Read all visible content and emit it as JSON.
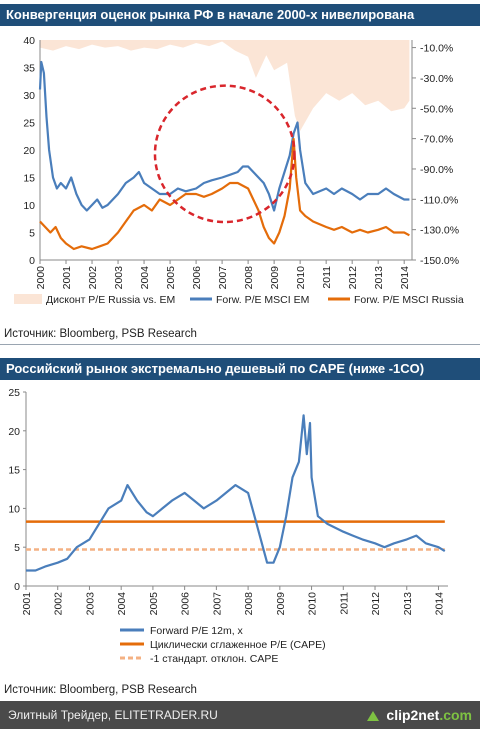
{
  "banner1": "Конвергенция оценок рынка РФ в начале 2000-х нивелирована",
  "banner2": "Российский рынок экстремально дешевый по CAPE (ниже -1CO)",
  "source1": "Источник: Bloomberg, PSB Research",
  "source2": "Источник: Bloomberg, PSB Research",
  "footer": {
    "text": "Элитный Трейдер, ELITETRADER.RU",
    "logo_main": "clip2net",
    "logo_suffix": ".com"
  },
  "colors": {
    "em": "#4a7ebb",
    "russia": "#e46c0a",
    "discount": "#fbe5d6",
    "circle": "#d9262c",
    "sd": "#f4b183",
    "banner": "#1f4e79"
  },
  "chart_data": [
    {
      "type": "line",
      "title": "",
      "x_ticks": [
        "2000",
        "2001",
        "2002",
        "2003",
        "2004",
        "2005",
        "2006",
        "2007",
        "2008",
        "2009",
        "2010",
        "2011",
        "2012",
        "2013",
        "2014"
      ],
      "xlim": [
        2000,
        2014.3
      ],
      "ylim": [
        0,
        40
      ],
      "y_ticks": [
        "0",
        "5",
        "10",
        "15",
        "20",
        "25",
        "30",
        "35",
        "40"
      ],
      "y2lim": [
        -150,
        -5
      ],
      "y2_ticks": [
        "-10.0%",
        "-30.0%",
        "-50.0%",
        "-70.0%",
        "-90.0%",
        "-110.0%",
        "-130.0%",
        "-150.0%"
      ],
      "legend": [
        "Дисконт P/E Russia vs. EM",
        "Forw. P/E MSCI EM",
        "Forw. P/E MSCI Russia"
      ],
      "legend_position": "bottom",
      "series": [
        {
          "name": "Дисконт P/E Russia vs. EM",
          "axis": "right",
          "type": "area",
          "x": [
            2000,
            2000.5,
            2001,
            2001.5,
            2002,
            2002.5,
            2003,
            2003.5,
            2004,
            2004.5,
            2005,
            2005.5,
            2006,
            2006.5,
            2007,
            2007.5,
            2008,
            2008.3,
            2008.7,
            2009,
            2009.5,
            2009.8,
            2010,
            2010.5,
            2011,
            2011.5,
            2012,
            2012.5,
            2013,
            2013.5,
            2014,
            2014.2
          ],
          "values": [
            -10,
            -12,
            -9,
            -11,
            -8,
            -10,
            -9,
            -12,
            -10,
            -11,
            -8,
            -10,
            -7,
            -9,
            -6,
            -12,
            -16,
            -30,
            -15,
            -25,
            -20,
            -55,
            -65,
            -50,
            -40,
            -45,
            -40,
            -48,
            -45,
            -52,
            -50,
            -45
          ]
        },
        {
          "name": "Forw. P/E MSCI EM",
          "axis": "left",
          "x": [
            2000,
            2000.05,
            2000.15,
            2000.25,
            2000.35,
            2000.5,
            2000.65,
            2000.8,
            2001,
            2001.2,
            2001.4,
            2001.6,
            2001.8,
            2002,
            2002.2,
            2002.4,
            2002.6,
            2002.8,
            2003,
            2003.3,
            2003.6,
            2003.8,
            2004,
            2004.3,
            2004.6,
            2005,
            2005.3,
            2005.6,
            2006,
            2006.3,
            2006.6,
            2007,
            2007.3,
            2007.6,
            2007.8,
            2008,
            2008.2,
            2008.4,
            2008.6,
            2008.8,
            2009,
            2009.2,
            2009.4,
            2009.6,
            2009.75,
            2009.9,
            2010,
            2010.2,
            2010.5,
            2011,
            2011.3,
            2011.6,
            2012,
            2012.3,
            2012.6,
            2013,
            2013.3,
            2013.6,
            2014,
            2014.2
          ],
          "values": [
            31,
            36,
            34,
            26,
            20,
            15,
            13,
            14,
            13,
            15,
            12,
            10,
            9,
            10,
            11,
            9.5,
            10,
            11,
            12,
            14,
            15,
            16,
            14,
            13,
            12,
            12,
            13,
            12.5,
            13,
            14,
            14.5,
            15,
            15.5,
            16,
            17,
            17,
            16,
            15,
            14,
            12,
            9,
            13,
            16,
            19,
            23,
            25,
            20,
            14,
            12,
            13,
            12,
            13,
            12,
            11,
            12,
            12,
            13,
            12,
            11,
            11
          ]
        },
        {
          "name": "Forw. P/E MSCI Russia",
          "axis": "left",
          "x": [
            2000,
            2000.2,
            2000.4,
            2000.6,
            2000.8,
            2001,
            2001.3,
            2001.6,
            2002,
            2002.3,
            2002.6,
            2003,
            2003.3,
            2003.6,
            2004,
            2004.3,
            2004.6,
            2005,
            2005.3,
            2005.6,
            2006,
            2006.3,
            2006.6,
            2007,
            2007.3,
            2007.6,
            2008,
            2008.2,
            2008.4,
            2008.6,
            2008.8,
            2009,
            2009.2,
            2009.4,
            2009.6,
            2009.75,
            2009.85,
            2010,
            2010.2,
            2010.5,
            2011,
            2011.3,
            2011.6,
            2012,
            2012.3,
            2012.6,
            2013,
            2013.3,
            2013.6,
            2014,
            2014.2
          ],
          "values": [
            7,
            6,
            5,
            6,
            4,
            3,
            2,
            2.5,
            2,
            2.5,
            3,
            5,
            7,
            9,
            10,
            9,
            11,
            10,
            11,
            12,
            12,
            11.5,
            12,
            13,
            14,
            14,
            13,
            11,
            9,
            6,
            4,
            3,
            5,
            8,
            13,
            22,
            15,
            9,
            8,
            7,
            6,
            5.5,
            6,
            5,
            5.5,
            5,
            5.5,
            6,
            5,
            5,
            4.5
          ]
        }
      ],
      "annotation": "dashed red circle highlighting 2004-2009 convergence"
    },
    {
      "type": "line",
      "title": "",
      "x_ticks": [
        "2001",
        "2002",
        "2003",
        "2004",
        "2005",
        "2006",
        "2007",
        "2008",
        "2009",
        "2010",
        "2011",
        "2012",
        "2013",
        "2014"
      ],
      "xlim": [
        2001,
        2014.3
      ],
      "ylim": [
        0,
        25
      ],
      "y_ticks": [
        "0",
        "5",
        "10",
        "15",
        "20",
        "25"
      ],
      "legend": [
        "Forward P/E 12m, x",
        "Циклически сглаженное P/E (CAPE)",
        "-1 стандарт. отклон. CAPE"
      ],
      "legend_position": "bottom",
      "series": [
        {
          "name": "Forward P/E 12m, x",
          "x": [
            2001,
            2001.3,
            2001.6,
            2002,
            2002.3,
            2002.6,
            2003,
            2003.3,
            2003.6,
            2004,
            2004.2,
            2004.5,
            2004.8,
            2005,
            2005.3,
            2005.6,
            2006,
            2006.3,
            2006.6,
            2007,
            2007.3,
            2007.6,
            2008,
            2008.2,
            2008.4,
            2008.6,
            2008.8,
            2009,
            2009.2,
            2009.4,
            2009.6,
            2009.75,
            2009.85,
            2009.95,
            2010,
            2010.2,
            2010.5,
            2011,
            2011.3,
            2011.6,
            2012,
            2012.3,
            2012.6,
            2013,
            2013.3,
            2013.6,
            2014,
            2014.2
          ],
          "values": [
            2,
            2,
            2.5,
            3,
            3.5,
            5,
            6,
            8,
            10,
            11,
            13,
            11,
            9.5,
            9,
            10,
            11,
            12,
            11,
            10,
            11,
            12,
            13,
            12,
            9,
            6,
            3,
            3,
            5,
            9,
            14,
            16,
            22,
            17,
            21,
            14,
            9,
            8,
            7,
            6.5,
            6,
            5.5,
            5,
            5.5,
            6,
            6.5,
            5.5,
            5,
            4.5
          ]
        },
        {
          "name": "Циклически сглаженное P/E (CAPE)",
          "x": [
            2001,
            2014.2
          ],
          "values": [
            8.3,
            8.3
          ]
        },
        {
          "name": "-1 стандарт. отклон. CAPE",
          "x": [
            2001,
            2014.2
          ],
          "values": [
            4.7,
            4.7
          ]
        }
      ]
    }
  ]
}
